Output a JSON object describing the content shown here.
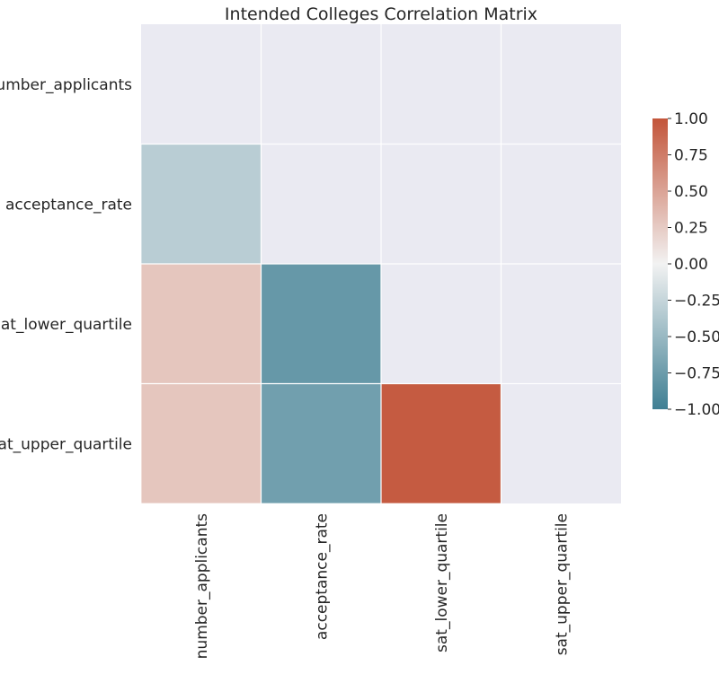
{
  "chart_data": {
    "type": "heatmap",
    "title": "Intended Colleges Correlation Matrix",
    "mask": "upper-triangle-and-diagonal",
    "rows": [
      "number_applicants",
      "acceptance_rate",
      "sat_lower_quartile",
      "sat_upper_quartile"
    ],
    "cols": [
      "number_applicants",
      "acceptance_rate",
      "sat_lower_quartile",
      "sat_upper_quartile"
    ],
    "values": [
      [
        null,
        null,
        null,
        null
      ],
      [
        -0.32,
        null,
        null,
        null
      ],
      [
        0.28,
        -0.78,
        null,
        null
      ],
      [
        0.28,
        -0.72,
        0.96,
        null
      ]
    ],
    "colorbar": {
      "vmin": -1.0,
      "vmax": 1.0,
      "ticks": [
        "1.00",
        "0.75",
        "0.50",
        "0.25",
        "0.00",
        "−0.25",
        "−0.50",
        "−0.75",
        "−1.00"
      ],
      "tick_values": [
        1.0,
        0.75,
        0.5,
        0.25,
        0.0,
        -0.25,
        -0.5,
        -0.75,
        -1.0
      ],
      "colormap": [
        "#3f7f93",
        "#f2f2f2",
        "#c3553a"
      ]
    },
    "background_color": "#eaeaf2",
    "grid_color": "#ffffff"
  }
}
